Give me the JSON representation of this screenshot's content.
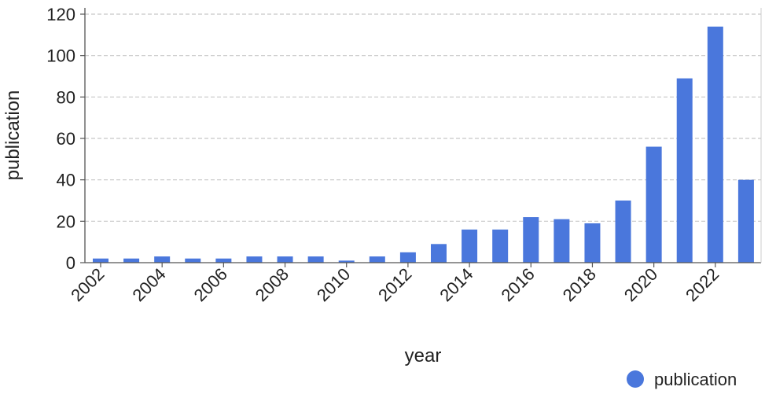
{
  "chart_data": {
    "type": "bar",
    "x": [
      2002,
      2003,
      2004,
      2005,
      2006,
      2007,
      2008,
      2009,
      2010,
      2011,
      2012,
      2013,
      2014,
      2015,
      2016,
      2017,
      2018,
      2019,
      2020,
      2021,
      2022,
      2023
    ],
    "x_tick_labels": [
      "2002",
      "2004",
      "2006",
      "2008",
      "2010",
      "2012",
      "2014",
      "2016",
      "2018",
      "2020",
      "2022"
    ],
    "series": [
      {
        "name": "publication",
        "color": "#4a77dc",
        "values": [
          2,
          2,
          3,
          2,
          2,
          3,
          3,
          3,
          1,
          3,
          5,
          9,
          16,
          16,
          22,
          21,
          19,
          30,
          56,
          89,
          114,
          40
        ]
      }
    ],
    "xlabel": "year",
    "ylabel": "publication",
    "ylim": [
      0,
      120
    ],
    "y_ticks": [
      0,
      20,
      40,
      60,
      80,
      100,
      120
    ],
    "grid": "horizontal-dashed",
    "legend_position": "bottom-right"
  }
}
